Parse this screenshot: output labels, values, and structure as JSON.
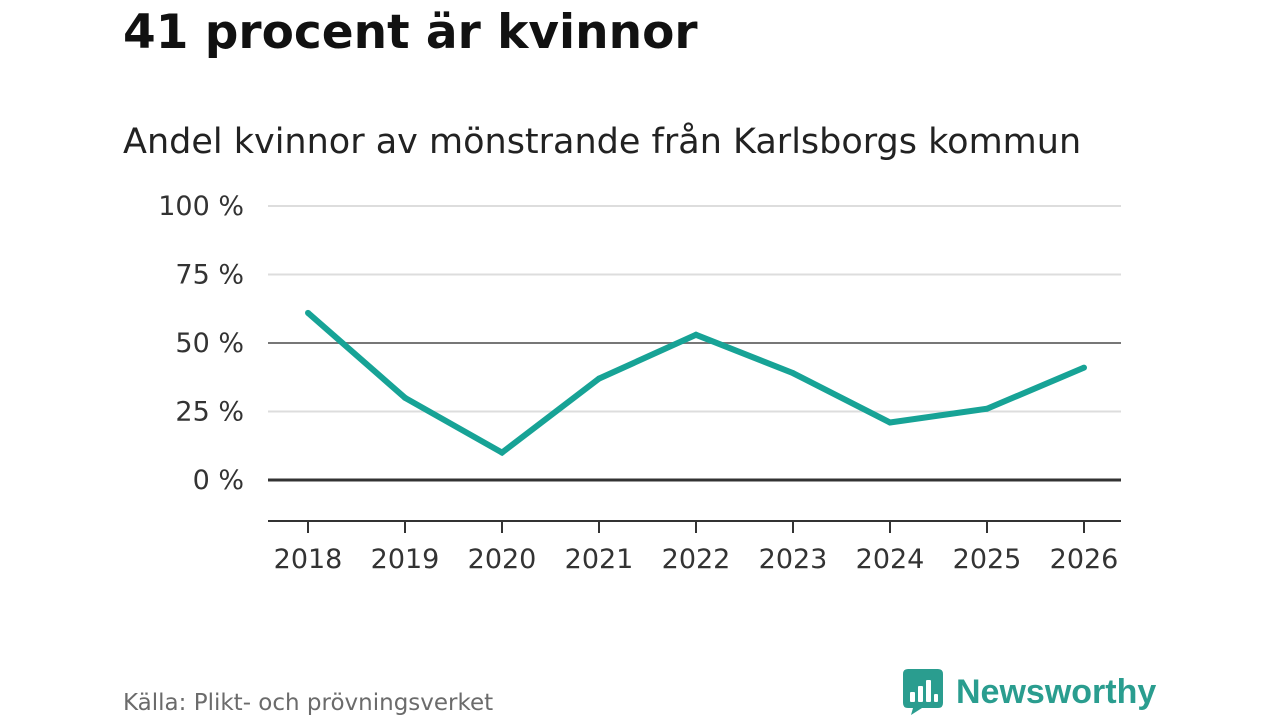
{
  "headline": "41 procent är kvinnor",
  "subtitle": "Andel kvinnor av mönstrande från Karlsborgs kommun",
  "source": "Källa: Plikt- och prövningsverket",
  "brand": {
    "name": "Newsworthy",
    "color": "#2a9d8f",
    "logo_icon": "bar-chart-speech-bubble-icon"
  },
  "colors": {
    "line": "#17a396",
    "grid": "#dddddd",
    "reference_50": "#777777",
    "zero_line": "#333333",
    "axis": "#333333"
  },
  "chart_data": {
    "type": "line",
    "title": "Andel kvinnor av mönstrande från Karlsborgs kommun",
    "xlabel": "",
    "ylabel": "",
    "categories": [
      "2018",
      "2019",
      "2020",
      "2021",
      "2022",
      "2023",
      "2024",
      "2025",
      "2026"
    ],
    "series": [
      {
        "name": "Andel kvinnor",
        "values": [
          61,
          30,
          10,
          37,
          53,
          39,
          21,
          26,
          41
        ]
      }
    ],
    "ylim": [
      -15,
      100
    ],
    "yticks": [
      0,
      25,
      50,
      75,
      100
    ],
    "ytick_labels": [
      "0 %",
      "25 %",
      "50 %",
      "75 %",
      "100 %"
    ],
    "grid": true,
    "legend": "none"
  }
}
